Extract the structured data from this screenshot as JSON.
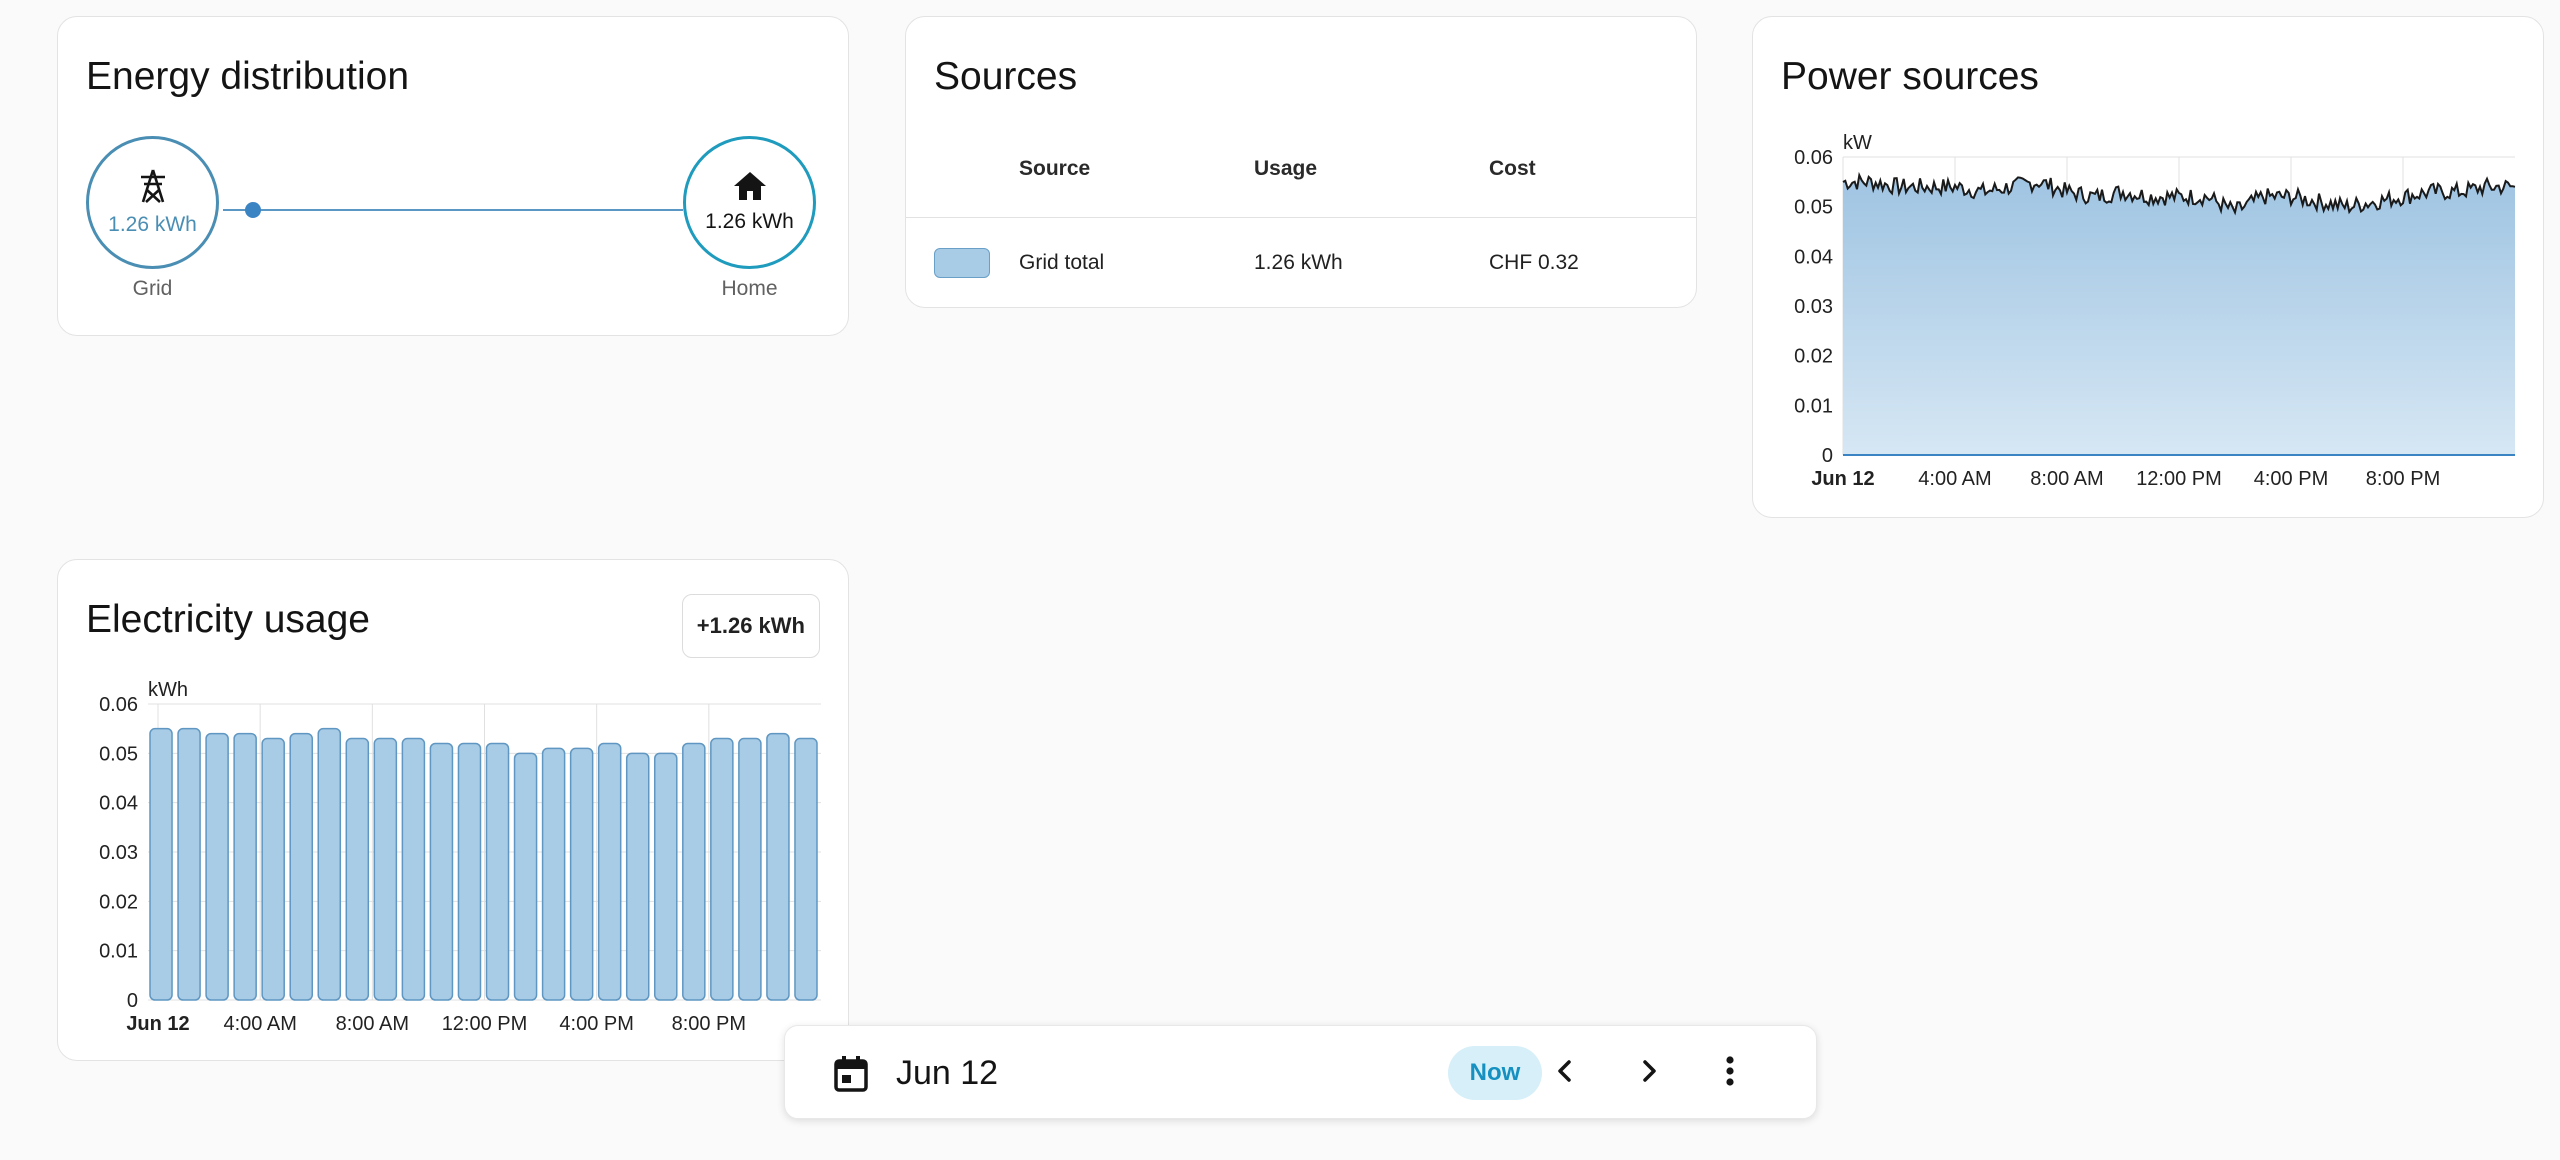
{
  "energy_distribution": {
    "title": "Energy distribution",
    "grid": {
      "value": "1.26 kWh",
      "label": "Grid",
      "color": "#4a8eb4"
    },
    "home": {
      "value": "1.26 kWh",
      "label": "Home",
      "color": "#1e9bbd"
    }
  },
  "sources": {
    "title": "Sources",
    "headers": [
      "Source",
      "Usage",
      "Cost"
    ],
    "rows": [
      {
        "color": "#a8cbe6",
        "source": "Grid total",
        "usage": "1.26 kWh",
        "cost": "CHF 0.32"
      }
    ]
  },
  "power_sources": {
    "title": "Power sources"
  },
  "electricity_usage": {
    "title": "Electricity usage",
    "badge": "+1.26 kWh"
  },
  "date_bar": {
    "date": "Jun 12",
    "now_label": "Now"
  },
  "chart_data": [
    {
      "type": "area",
      "title": "Power sources",
      "ylabel": "kW",
      "ylim": [
        0,
        0.06
      ],
      "yticks": [
        "0",
        "0.01",
        "0.02",
        "0.03",
        "0.04",
        "0.05",
        "0.06"
      ],
      "xticks": [
        "Jun 12",
        "4:00 AM",
        "8:00 AM",
        "12:00 PM",
        "4:00 PM",
        "8:00 PM"
      ],
      "grid": true,
      "series": [
        {
          "color": "#a8cbe6",
          "x_hours": [
            0,
            1,
            2,
            3,
            4,
            5,
            6,
            7,
            8,
            9,
            10,
            11,
            12,
            13,
            14,
            15,
            16,
            17,
            18,
            19,
            20,
            21,
            22,
            23,
            24
          ],
          "values": [
            0.055,
            0.055,
            0.054,
            0.054,
            0.054,
            0.053,
            0.054,
            0.055,
            0.053,
            0.052,
            0.053,
            0.052,
            0.052,
            0.052,
            0.049,
            0.052,
            0.052,
            0.051,
            0.05,
            0.051,
            0.052,
            0.053,
            0.053,
            0.054,
            0.054
          ]
        }
      ]
    },
    {
      "type": "bar",
      "title": "Electricity usage",
      "ylabel": "kWh",
      "ylim": [
        0,
        0.06
      ],
      "yticks": [
        "0",
        "0.01",
        "0.02",
        "0.03",
        "0.04",
        "0.05",
        "0.06"
      ],
      "xticks": [
        "Jun 12",
        "4:00 AM",
        "8:00 AM",
        "12:00 PM",
        "4:00 PM",
        "8:00 PM"
      ],
      "grid": true,
      "series": [
        {
          "color": "#a8cbe6",
          "categories": [
            "0",
            "1",
            "2",
            "3",
            "4",
            "5",
            "6",
            "7",
            "8",
            "9",
            "10",
            "11",
            "12",
            "13",
            "14",
            "15",
            "16",
            "17",
            "18",
            "19",
            "20",
            "21",
            "22",
            "23"
          ],
          "values": [
            0.055,
            0.055,
            0.054,
            0.054,
            0.053,
            0.054,
            0.055,
            0.053,
            0.053,
            0.053,
            0.052,
            0.052,
            0.052,
            0.05,
            0.051,
            0.051,
            0.052,
            0.05,
            0.05,
            0.052,
            0.053,
            0.053,
            0.054,
            0.053
          ]
        }
      ]
    }
  ]
}
